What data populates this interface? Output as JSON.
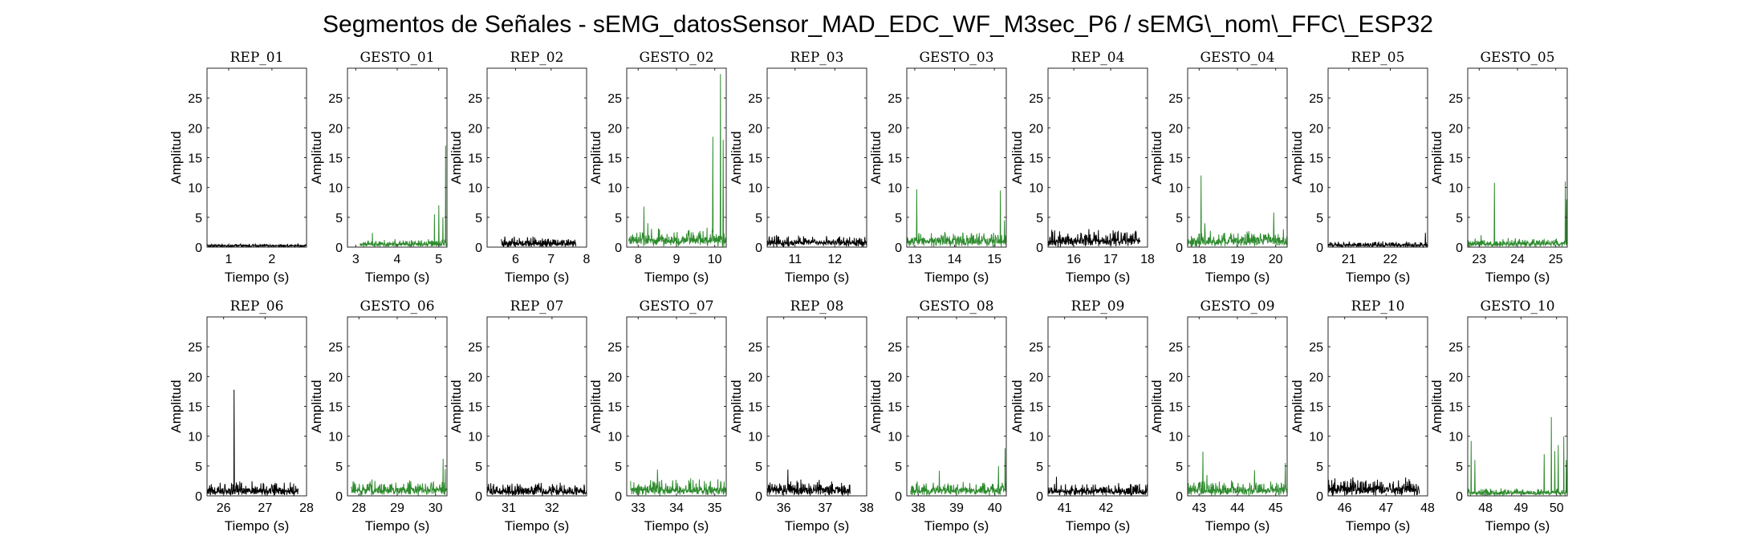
{
  "figure": {
    "title": "Segmentos de Señales - sEMG_datosSensor_MAD_EDC_WF_M3sec_P6 / sEMG\\_nom\\_FFC\\_ESP32",
    "colors": {
      "rep": "#000000",
      "gesture": "#2e8b2e",
      "axis": "#262626",
      "background": "#ffffff"
    }
  },
  "chart_data": [
    {
      "type": "line",
      "title": "REP_01",
      "xlabel": "Tiempo (s)",
      "ylabel": "Amplitud",
      "kind": "rep",
      "xlim": [
        0.5,
        2.8
      ],
      "ylim": [
        0,
        30
      ],
      "xticks": [
        1,
        2
      ],
      "yticks": [
        0,
        5,
        10,
        15,
        20,
        25
      ],
      "series": [
        {
          "x_range": [
            0.5,
            2.8
          ],
          "baseline": 0.3,
          "noise": 0.3,
          "spikes": []
        }
      ]
    },
    {
      "type": "line",
      "title": "GESTO_01",
      "xlabel": "Tiempo (s)",
      "ylabel": "Amplitud",
      "kind": "gesture",
      "xlim": [
        2.8,
        5.2
      ],
      "ylim": [
        0,
        30
      ],
      "xticks": [
        3,
        4,
        5
      ],
      "yticks": [
        0,
        5,
        10,
        15,
        20,
        25
      ],
      "series": [
        {
          "x_range": [
            3.1,
            5.2
          ],
          "baseline": 0.5,
          "noise": 0.9,
          "spikes": [
            [
              3.4,
              2.4
            ],
            [
              4.9,
              5.5
            ],
            [
              5.0,
              7.0
            ],
            [
              5.1,
              5.0
            ],
            [
              5.17,
              17.0
            ]
          ]
        }
      ]
    },
    {
      "type": "line",
      "title": "REP_02",
      "xlabel": "Tiempo (s)",
      "ylabel": "Amplitud",
      "kind": "rep",
      "xlim": [
        5.2,
        8.0
      ],
      "ylim": [
        0,
        30
      ],
      "xticks": [
        6,
        7,
        8
      ],
      "yticks": [
        0,
        5,
        10,
        15,
        20,
        25
      ],
      "series": [
        {
          "x_range": [
            5.6,
            7.7
          ],
          "baseline": 0.6,
          "noise": 1.3,
          "spikes": []
        }
      ]
    },
    {
      "type": "line",
      "title": "GESTO_02",
      "xlabel": "Tiempo (s)",
      "ylabel": "Amplitud",
      "kind": "gesture",
      "xlim": [
        7.7,
        10.3
      ],
      "ylim": [
        0,
        30
      ],
      "xticks": [
        8,
        9,
        10
      ],
      "yticks": [
        0,
        5,
        10,
        15,
        20,
        25
      ],
      "series": [
        {
          "x_range": [
            7.75,
            10.3
          ],
          "baseline": 1.0,
          "noise": 2.5,
          "spikes": [
            [
              8.15,
              6.8
            ],
            [
              8.25,
              4.0
            ],
            [
              9.95,
              18.5
            ],
            [
              10.15,
              29.0
            ],
            [
              10.22,
              18.0
            ]
          ]
        }
      ]
    },
    {
      "type": "line",
      "title": "REP_03",
      "xlabel": "Tiempo (s)",
      "ylabel": "Amplitud",
      "kind": "rep",
      "xlim": [
        10.3,
        12.8
      ],
      "ylim": [
        0,
        30
      ],
      "xticks": [
        11,
        12
      ],
      "yticks": [
        0,
        5,
        10,
        15,
        20,
        25
      ],
      "series": [
        {
          "x_range": [
            10.3,
            12.8
          ],
          "baseline": 0.8,
          "noise": 1.3,
          "spikes": []
        }
      ]
    },
    {
      "type": "line",
      "title": "GESTO_03",
      "xlabel": "Tiempo (s)",
      "ylabel": "Amplitud",
      "kind": "gesture",
      "xlim": [
        12.8,
        15.3
      ],
      "ylim": [
        0,
        30
      ],
      "xticks": [
        13,
        14,
        15
      ],
      "yticks": [
        0,
        5,
        10,
        15,
        20,
        25
      ],
      "series": [
        {
          "x_range": [
            12.8,
            15.3
          ],
          "baseline": 1.0,
          "noise": 1.8,
          "spikes": [
            [
              13.05,
              9.7
            ],
            [
              15.15,
              9.5
            ],
            [
              15.25,
              4.5
            ]
          ]
        }
      ]
    },
    {
      "type": "line",
      "title": "REP_04",
      "xlabel": "Tiempo (s)",
      "ylabel": "Amplitud",
      "kind": "rep",
      "xlim": [
        15.3,
        18.0
      ],
      "ylim": [
        0,
        30
      ],
      "xticks": [
        16,
        17,
        18
      ],
      "yticks": [
        0,
        5,
        10,
        15,
        20,
        25
      ],
      "series": [
        {
          "x_range": [
            15.3,
            17.8
          ],
          "baseline": 1.0,
          "noise": 2.3,
          "spikes": [
            [
              15.4,
              2.9
            ]
          ]
        }
      ]
    },
    {
      "type": "line",
      "title": "GESTO_04",
      "xlabel": "Tiempo (s)",
      "ylabel": "Amplitud",
      "kind": "gesture",
      "xlim": [
        17.7,
        20.3
      ],
      "ylim": [
        0,
        30
      ],
      "xticks": [
        18,
        19,
        20
      ],
      "yticks": [
        0,
        5,
        10,
        15,
        20,
        25
      ],
      "series": [
        {
          "x_range": [
            17.7,
            20.3
          ],
          "baseline": 1.0,
          "noise": 2.0,
          "spikes": [
            [
              18.05,
              12.0
            ],
            [
              18.15,
              4.0
            ],
            [
              19.95,
              5.8
            ],
            [
              20.2,
              3.0
            ]
          ]
        }
      ]
    },
    {
      "type": "line",
      "title": "REP_05",
      "xlabel": "Tiempo (s)",
      "ylabel": "Amplitud",
      "kind": "rep",
      "xlim": [
        20.5,
        22.9
      ],
      "ylim": [
        0,
        30
      ],
      "xticks": [
        21,
        22
      ],
      "yticks": [
        0,
        5,
        10,
        15,
        20,
        25
      ],
      "series": [
        {
          "x_range": [
            20.5,
            22.9
          ],
          "baseline": 0.3,
          "noise": 0.7,
          "spikes": [
            [
              22.85,
              2.4
            ]
          ]
        }
      ]
    },
    {
      "type": "line",
      "title": "GESTO_05",
      "xlabel": "Tiempo (s)",
      "ylabel": "Amplitud",
      "kind": "gesture",
      "xlim": [
        22.7,
        25.3
      ],
      "ylim": [
        0,
        30
      ],
      "xticks": [
        23,
        24,
        25
      ],
      "yticks": [
        0,
        5,
        10,
        15,
        20,
        25
      ],
      "series": [
        {
          "x_range": [
            22.7,
            25.3
          ],
          "baseline": 0.6,
          "noise": 1.0,
          "spikes": [
            [
              23.05,
              2.0
            ],
            [
              23.4,
              10.8
            ],
            [
              25.25,
              11.0
            ],
            [
              25.28,
              8.0
            ]
          ]
        }
      ]
    },
    {
      "type": "line",
      "title": "REP_06",
      "xlabel": "Tiempo (s)",
      "ylabel": "Amplitud",
      "kind": "rep",
      "xlim": [
        25.6,
        28.0
      ],
      "ylim": [
        0,
        30
      ],
      "xticks": [
        26,
        27,
        28
      ],
      "yticks": [
        0,
        5,
        10,
        15,
        20,
        25
      ],
      "series": [
        {
          "x_range": [
            25.6,
            27.8
          ],
          "baseline": 0.7,
          "noise": 1.9,
          "spikes": [
            [
              26.25,
              17.8
            ]
          ]
        }
      ]
    },
    {
      "type": "line",
      "title": "GESTO_06",
      "xlabel": "Tiempo (s)",
      "ylabel": "Amplitud",
      "kind": "gesture",
      "xlim": [
        27.7,
        30.3
      ],
      "ylim": [
        0,
        30
      ],
      "xticks": [
        28,
        29,
        30
      ],
      "yticks": [
        0,
        5,
        10,
        15,
        20,
        25
      ],
      "series": [
        {
          "x_range": [
            27.8,
            30.3
          ],
          "baseline": 0.9,
          "noise": 2.0,
          "spikes": [
            [
              30.2,
              6.2
            ],
            [
              30.25,
              4.5
            ]
          ]
        }
      ]
    },
    {
      "type": "line",
      "title": "REP_07",
      "xlabel": "Tiempo (s)",
      "ylabel": "Amplitud",
      "kind": "rep",
      "xlim": [
        30.5,
        32.8
      ],
      "ylim": [
        0,
        30
      ],
      "xticks": [
        31,
        32
      ],
      "yticks": [
        0,
        5,
        10,
        15,
        20,
        25
      ],
      "series": [
        {
          "x_range": [
            30.5,
            32.8
          ],
          "baseline": 0.7,
          "noise": 1.6,
          "spikes": []
        }
      ]
    },
    {
      "type": "line",
      "title": "GESTO_07",
      "xlabel": "Tiempo (s)",
      "ylabel": "Amplitud",
      "kind": "gesture",
      "xlim": [
        32.7,
        35.3
      ],
      "ylim": [
        0,
        30
      ],
      "xticks": [
        33,
        34,
        35
      ],
      "yticks": [
        0,
        5,
        10,
        15,
        20,
        25
      ],
      "series": [
        {
          "x_range": [
            32.8,
            35.3
          ],
          "baseline": 0.9,
          "noise": 2.2,
          "spikes": [
            [
              33.5,
              4.4
            ]
          ]
        }
      ]
    },
    {
      "type": "line",
      "title": "REP_08",
      "xlabel": "Tiempo (s)",
      "ylabel": "Amplitud",
      "kind": "rep",
      "xlim": [
        35.6,
        38.0
      ],
      "ylim": [
        0,
        30
      ],
      "xticks": [
        36,
        37,
        38
      ],
      "yticks": [
        0,
        5,
        10,
        15,
        20,
        25
      ],
      "series": [
        {
          "x_range": [
            35.6,
            37.6
          ],
          "baseline": 0.9,
          "noise": 1.9,
          "spikes": [
            [
              36.1,
              4.4
            ]
          ]
        }
      ]
    },
    {
      "type": "line",
      "title": "GESTO_08",
      "xlabel": "Tiempo (s)",
      "ylabel": "Amplitud",
      "kind": "gesture",
      "xlim": [
        37.7,
        40.3
      ],
      "ylim": [
        0,
        30
      ],
      "xticks": [
        38,
        39,
        40
      ],
      "yticks": [
        0,
        5,
        10,
        15,
        20,
        25
      ],
      "series": [
        {
          "x_range": [
            37.8,
            40.3
          ],
          "baseline": 0.8,
          "noise": 1.8,
          "spikes": [
            [
              38.55,
              4.2
            ],
            [
              40.1,
              5.0
            ],
            [
              40.27,
              8.0
            ]
          ]
        }
      ]
    },
    {
      "type": "line",
      "title": "REP_09",
      "xlabel": "Tiempo (s)",
      "ylabel": "Amplitud",
      "kind": "rep",
      "xlim": [
        40.6,
        43.0
      ],
      "ylim": [
        0,
        30
      ],
      "xticks": [
        41,
        42
      ],
      "yticks": [
        0,
        5,
        10,
        15,
        20,
        25
      ],
      "series": [
        {
          "x_range": [
            40.6,
            43.0
          ],
          "baseline": 0.6,
          "noise": 1.7,
          "spikes": [
            [
              40.8,
              3.2
            ]
          ]
        }
      ]
    },
    {
      "type": "line",
      "title": "GESTO_09",
      "xlabel": "Tiempo (s)",
      "ylabel": "Amplitud",
      "kind": "gesture",
      "xlim": [
        42.7,
        45.3
      ],
      "ylim": [
        0,
        30
      ],
      "xticks": [
        43,
        44,
        45
      ],
      "yticks": [
        0,
        5,
        10,
        15,
        20,
        25
      ],
      "series": [
        {
          "x_range": [
            42.7,
            45.3
          ],
          "baseline": 0.8,
          "noise": 1.9,
          "spikes": [
            [
              43.1,
              7.4
            ],
            [
              43.2,
              3.5
            ],
            [
              44.45,
              4.3
            ],
            [
              45.25,
              5.5
            ]
          ]
        }
      ]
    },
    {
      "type": "line",
      "title": "REP_10",
      "xlabel": "Tiempo (s)",
      "ylabel": "Amplitud",
      "kind": "rep",
      "xlim": [
        45.6,
        48.0
      ],
      "ylim": [
        0,
        30
      ],
      "xticks": [
        46,
        47,
        48
      ],
      "yticks": [
        0,
        5,
        10,
        15,
        20,
        25
      ],
      "series": [
        {
          "x_range": [
            45.6,
            47.8
          ],
          "baseline": 1.0,
          "noise": 2.3,
          "spikes": []
        }
      ]
    },
    {
      "type": "line",
      "title": "GESTO_10",
      "xlabel": "Tiempo (s)",
      "ylabel": "Amplitud",
      "kind": "gesture",
      "xlim": [
        47.5,
        50.3
      ],
      "ylim": [
        0,
        30
      ],
      "xticks": [
        48,
        49,
        50
      ],
      "yticks": [
        0,
        5,
        10,
        15,
        20,
        25
      ],
      "series": [
        {
          "x_range": [
            47.5,
            50.3
          ],
          "baseline": 0.5,
          "noise": 0.9,
          "spikes": [
            [
              47.6,
              9.2
            ],
            [
              47.7,
              6.0
            ],
            [
              49.65,
              7.0
            ],
            [
              49.85,
              13.2
            ],
            [
              49.95,
              7.5
            ],
            [
              50.05,
              8.5
            ],
            [
              50.2,
              10.0
            ],
            [
              50.27,
              6.0
            ]
          ]
        }
      ]
    }
  ]
}
